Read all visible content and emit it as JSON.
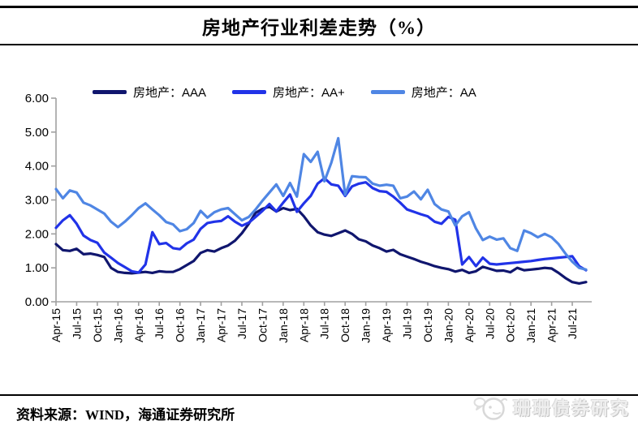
{
  "title": "房地产行业利差走势（%）",
  "footer": {
    "source": "资料来源：WIND，海通证券研究所"
  },
  "watermark": {
    "text": "珊珊债券研究",
    "logo": "whale-badge-icon"
  },
  "colors": {
    "aaa_line": "#10166e",
    "aa_plus_line": "#2133e8",
    "aa_line": "#4f86e4",
    "axis": "#a0a0a0",
    "text": "#000000"
  },
  "chart_data": {
    "type": "line",
    "title": "房地产行业利差走势（%）",
    "ylabel": "",
    "xlabel": "",
    "ylim": [
      0,
      6
    ],
    "grid": false,
    "legend_position": "top",
    "y_ticks": [
      "6.00",
      "5.00",
      "4.00",
      "3.00",
      "2.00",
      "1.00",
      "0.00"
    ],
    "tick_labels": [
      "Apr-15",
      "Jul-15",
      "Oct-15",
      "Jan-16",
      "Apr-16",
      "Jul-16",
      "Oct-16",
      "Jan-17",
      "Apr-17",
      "Jul-17",
      "Oct-17",
      "Jan-18",
      "Apr-18",
      "Jul-18",
      "Oct-18",
      "Jan-19",
      "Apr-19",
      "Jul-19",
      "Oct-19",
      "Jan-20",
      "Apr-20",
      "Jul-20",
      "Oct-20",
      "Jan-21",
      "Apr-21",
      "Jul-21"
    ],
    "x": [
      "Apr-15",
      "May-15",
      "Jun-15",
      "Jul-15",
      "Aug-15",
      "Sep-15",
      "Oct-15",
      "Nov-15",
      "Dec-15",
      "Jan-16",
      "Feb-16",
      "Mar-16",
      "Apr-16",
      "May-16",
      "Jun-16",
      "Jul-16",
      "Aug-16",
      "Sep-16",
      "Oct-16",
      "Nov-16",
      "Dec-16",
      "Jan-17",
      "Feb-17",
      "Mar-17",
      "Apr-17",
      "May-17",
      "Jun-17",
      "Jul-17",
      "Aug-17",
      "Sep-17",
      "Oct-17",
      "Nov-17",
      "Dec-17",
      "Jan-18",
      "Feb-18",
      "Mar-18",
      "Apr-18",
      "May-18",
      "Jun-18",
      "Jul-18",
      "Aug-18",
      "Sep-18",
      "Oct-18",
      "Nov-18",
      "Dec-18",
      "Jan-19",
      "Feb-19",
      "Mar-19",
      "Apr-19",
      "May-19",
      "Jun-19",
      "Jul-19",
      "Aug-19",
      "Sep-19",
      "Oct-19",
      "Nov-19",
      "Dec-19",
      "Jan-20",
      "Feb-20",
      "Mar-20",
      "Apr-20",
      "May-20",
      "Jun-20",
      "Jul-20",
      "Aug-20",
      "Sep-20",
      "Oct-20",
      "Nov-20",
      "Dec-20",
      "Jan-21",
      "Feb-21",
      "Mar-21",
      "Apr-21",
      "May-21",
      "Jun-21",
      "Jul-21",
      "Aug-21",
      "Sep-21"
    ],
    "series": [
      {
        "name": "房地产：AAA",
        "color": "#10166e",
        "values": [
          1.7,
          1.52,
          1.5,
          1.56,
          1.4,
          1.42,
          1.38,
          1.32,
          1.0,
          0.88,
          0.85,
          0.84,
          0.86,
          0.88,
          0.85,
          0.9,
          0.88,
          0.88,
          0.96,
          1.08,
          1.2,
          1.44,
          1.52,
          1.48,
          1.58,
          1.66,
          1.8,
          2.02,
          2.3,
          2.62,
          2.74,
          2.8,
          2.66,
          2.76,
          2.7,
          2.74,
          2.52,
          2.25,
          2.05,
          1.98,
          1.94,
          2.02,
          2.1,
          2.0,
          1.84,
          1.78,
          1.66,
          1.58,
          1.48,
          1.53,
          1.4,
          1.33,
          1.26,
          1.18,
          1.12,
          1.05,
          1.0,
          0.96,
          0.89,
          0.94,
          0.85,
          0.9,
          1.03,
          0.97,
          0.91,
          0.92,
          0.87,
          1.0,
          0.93,
          0.95,
          0.97,
          1.0,
          0.98,
          0.85,
          0.7,
          0.58,
          0.54,
          0.58
        ]
      },
      {
        "name": "房地产：AA+",
        "color": "#2133e8",
        "values": [
          2.18,
          2.4,
          2.55,
          2.3,
          1.95,
          1.82,
          1.74,
          1.45,
          1.3,
          1.14,
          1.02,
          0.9,
          0.86,
          1.1,
          2.05,
          1.7,
          1.73,
          1.58,
          1.55,
          1.72,
          1.83,
          2.15,
          2.32,
          2.36,
          2.38,
          2.52,
          2.36,
          2.24,
          2.33,
          2.5,
          2.68,
          2.88,
          2.66,
          2.92,
          3.16,
          2.65,
          2.9,
          3.12,
          3.48,
          3.64,
          3.46,
          3.42,
          3.12,
          3.4,
          3.48,
          3.52,
          3.35,
          3.26,
          3.24,
          3.1,
          2.92,
          2.72,
          2.65,
          2.58,
          2.52,
          2.36,
          2.3,
          2.5,
          2.42,
          1.1,
          1.32,
          1.05,
          1.3,
          1.12,
          1.1,
          1.12,
          1.14,
          1.16,
          1.18,
          1.2,
          1.23,
          1.26,
          1.28,
          1.3,
          1.32,
          1.34,
          1.05,
          0.93
        ]
      },
      {
        "name": "房地产：AA",
        "color": "#4f86e4",
        "values": [
          3.32,
          3.05,
          3.28,
          3.22,
          2.92,
          2.84,
          2.72,
          2.6,
          2.36,
          2.2,
          2.36,
          2.55,
          2.76,
          2.9,
          2.72,
          2.55,
          2.35,
          2.28,
          2.08,
          2.14,
          2.32,
          2.68,
          2.48,
          2.64,
          2.72,
          2.76,
          2.58,
          2.4,
          2.5,
          2.72,
          2.98,
          3.22,
          3.46,
          3.12,
          3.5,
          3.1,
          4.35,
          4.12,
          4.42,
          3.55,
          4.1,
          4.82,
          3.15,
          3.7,
          3.68,
          3.67,
          3.48,
          3.42,
          3.45,
          3.42,
          3.05,
          3.1,
          3.25,
          3.02,
          3.3,
          2.88,
          2.72,
          2.66,
          2.25,
          2.52,
          2.64,
          2.16,
          1.82,
          1.92,
          1.83,
          1.87,
          1.58,
          1.5,
          2.1,
          2.02,
          1.9,
          2.0,
          1.9,
          1.7,
          1.42,
          1.18,
          1.0,
          0.95
        ]
      }
    ]
  }
}
